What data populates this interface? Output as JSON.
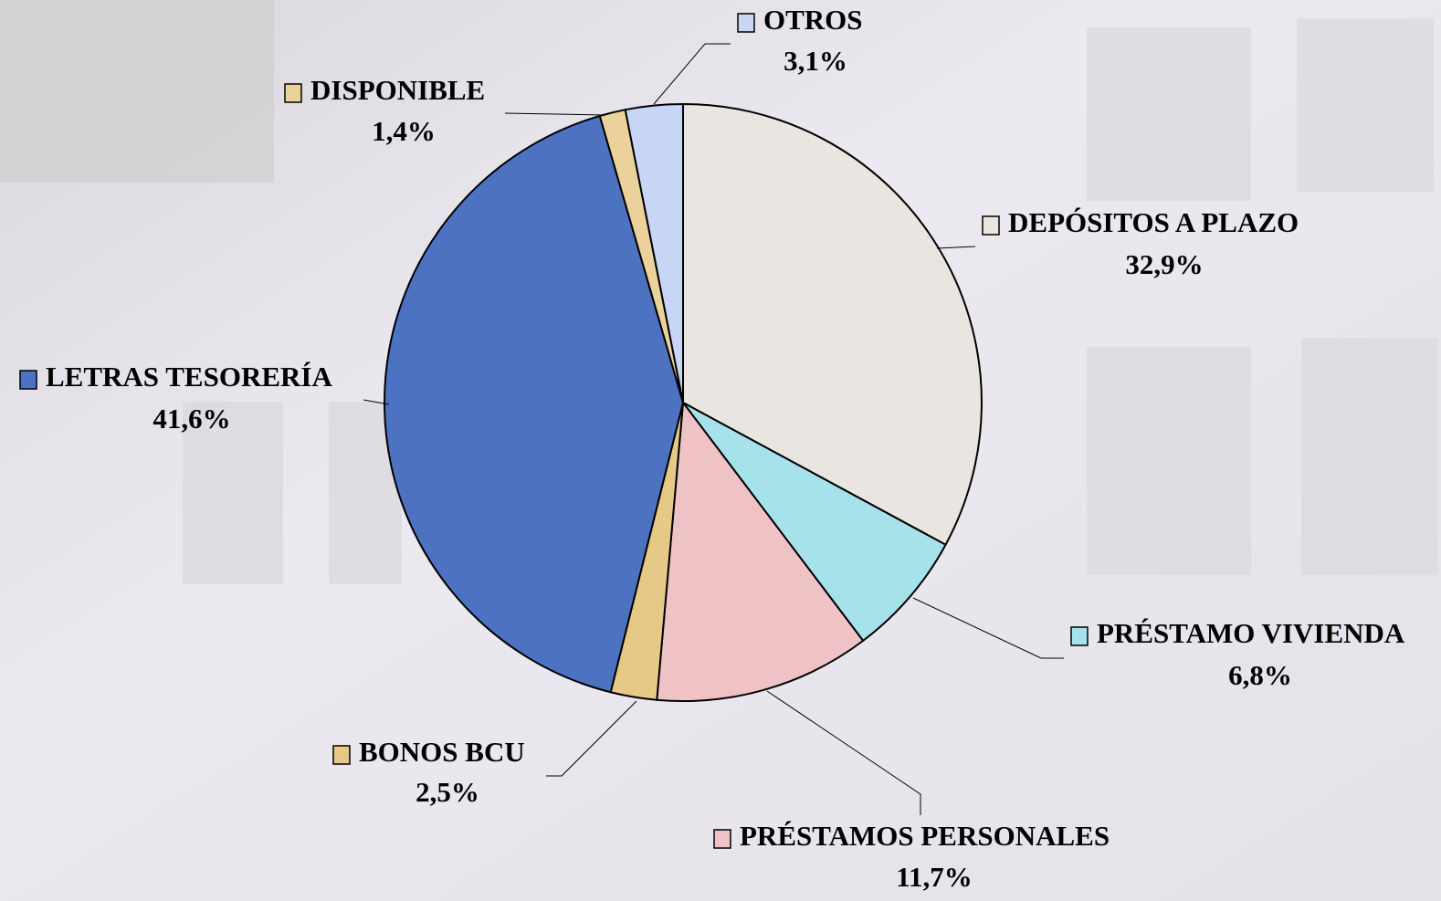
{
  "chart_data": {
    "type": "pie",
    "categories": [
      "DEPÓSITOS A PLAZO",
      "PRÉSTAMO VIVIENDA",
      "PRÉSTAMOS PERSONALES",
      "BONOS BCU",
      "LETRAS TESORERÍA",
      "DISPONIBLE",
      "OTROS"
    ],
    "values": [
      32.9,
      6.8,
      11.7,
      2.5,
      41.6,
      1.4,
      3.1
    ],
    "value_labels": [
      "32,9%",
      "6,8%",
      "11,7%",
      "2,5%",
      "41,6%",
      "1,4%",
      "3,1%"
    ],
    "colors": [
      "#e9e6e1",
      "#a6e2ea",
      "#efc3c6",
      "#e6c987",
      "#4d72c2",
      "#ead29a",
      "#c9d5f5"
    ]
  }
}
